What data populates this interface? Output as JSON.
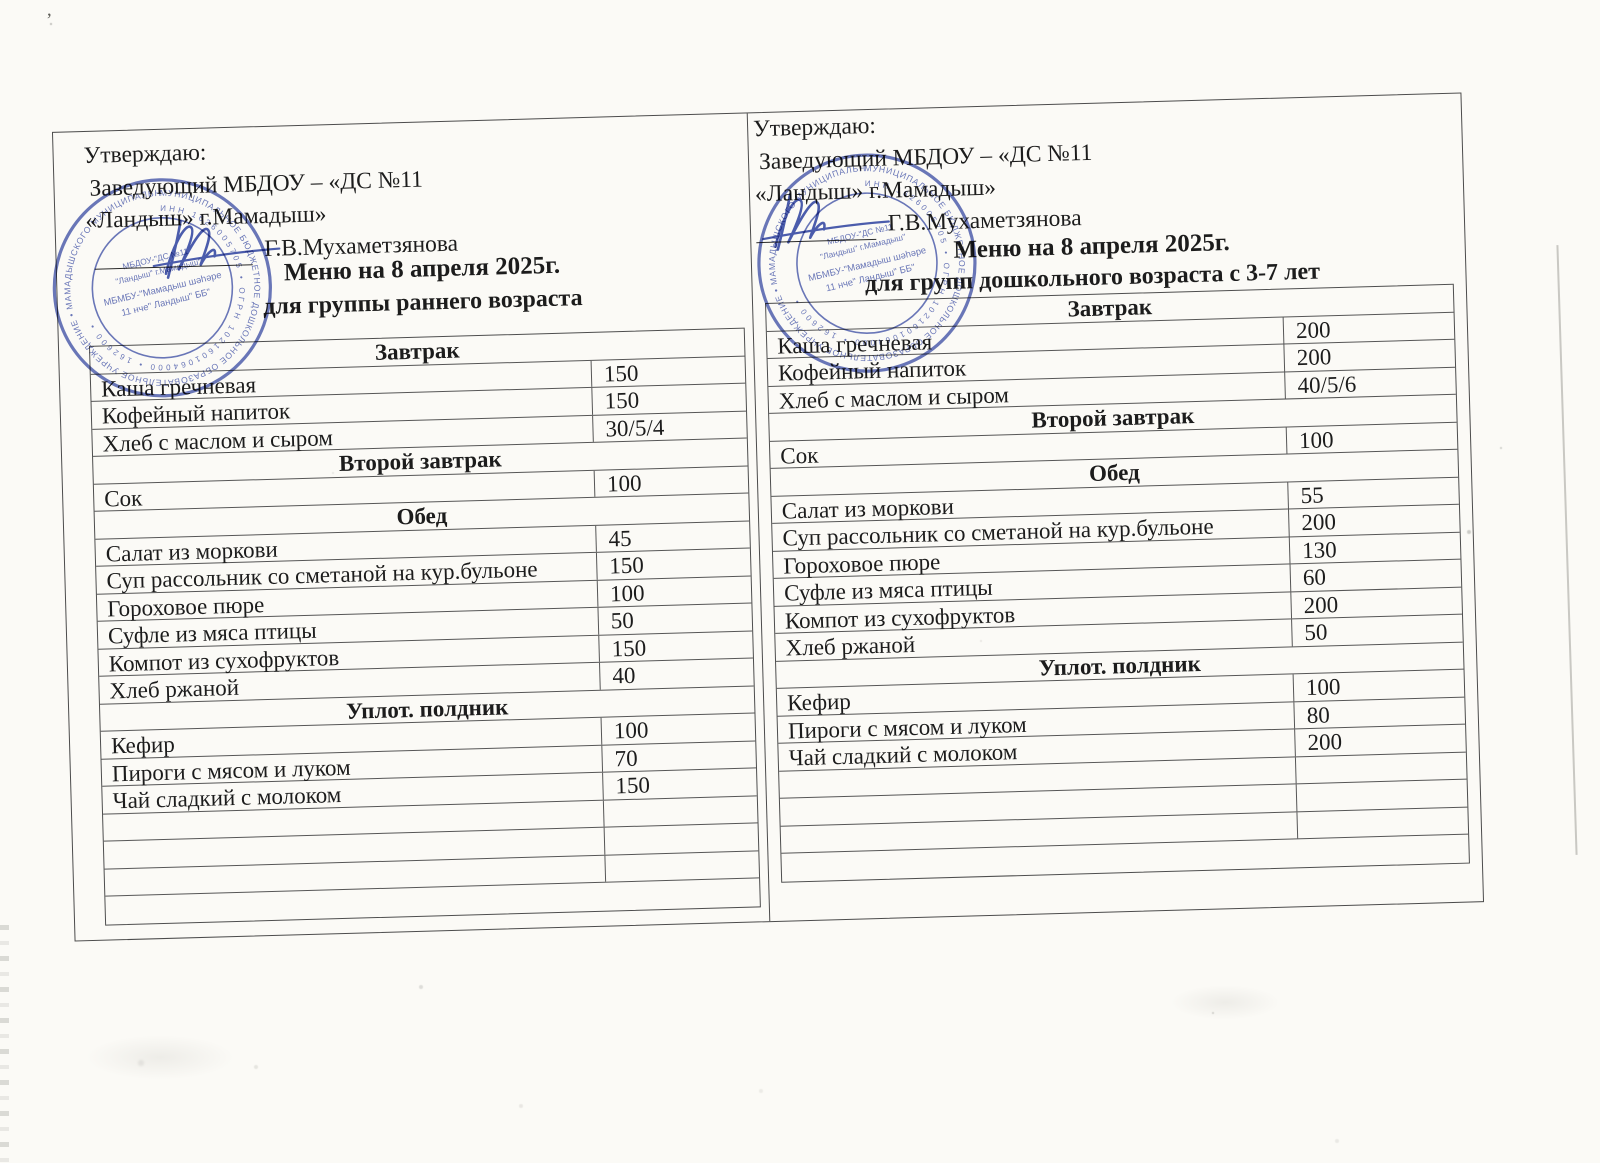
{
  "colors": {
    "paper": "#fbfaf6",
    "ink": "#1c1c1c",
    "table_line": "#565656",
    "stamp_blue": "#5463ae",
    "signature_blue": "#3c4fa5"
  },
  "stray_mark": "’",
  "left_menu": {
    "approval": {
      "line1": "Утверждаю:",
      "line2": "Заведующий МБДОУ – «ДС №11",
      "line3": "«Ландыш» г.Мамадыш»",
      "signee": "Г.В.Мухаметзянова"
    },
    "title": "Меню на 8 апреля 2025г.",
    "subtitle": "для группы раннего возраста",
    "sections": [
      {
        "header": "Завтрак",
        "items": [
          {
            "dish": "Каша гречневая",
            "amount": "150"
          },
          {
            "dish": "Кофейный напиток",
            "amount": "150"
          },
          {
            "dish": "Хлеб с маслом и сыром",
            "amount": "30/5/4"
          }
        ]
      },
      {
        "header": "Второй завтрак",
        "items": [
          {
            "dish": "Сок",
            "amount": "100"
          }
        ]
      },
      {
        "header": "Обед",
        "items": [
          {
            "dish": "Салат из моркови",
            "amount": "45"
          },
          {
            "dish": "Суп рассольник со сметаной на кур.бульоне",
            "amount": "150"
          },
          {
            "dish": "Гороховое пюре",
            "amount": "100"
          },
          {
            "dish": "Суфле из мяса птицы",
            "amount": "50"
          },
          {
            "dish": "Компот из сухофруктов",
            "amount": "150"
          },
          {
            "dish": "Хлеб ржаной",
            "amount": "40"
          }
        ]
      },
      {
        "header": "Уплот. полдник",
        "items": [
          {
            "dish": "Кефир",
            "amount": "100"
          },
          {
            "dish": "Пироги с мясом и луком",
            "amount": "70"
          },
          {
            "dish": "Чай сладкий с молоком",
            "amount": "150"
          }
        ]
      }
    ],
    "empty_rows": 4
  },
  "right_menu": {
    "approval": {
      "line1": "Утверждаю:",
      "line2": "Заведующий МБДОУ – «ДС №11",
      "line3": "«Ландыш» г.Мамадыш»",
      "signee": "Г.В.Мухаметзянова"
    },
    "title": "Меню на 8 апреля 2025г.",
    "subtitle": "для групп дошкольного возраста с 3-7 лет",
    "sections": [
      {
        "header": "Завтрак",
        "items": [
          {
            "dish": "Каша гречневая",
            "amount": "200"
          },
          {
            "dish": "Кофейный напиток",
            "amount": "200"
          },
          {
            "dish": "Хлеб с маслом и сыром",
            "amount": "40/5/6"
          }
        ]
      },
      {
        "header": "Второй завтрак",
        "items": [
          {
            "dish": "Сок",
            "amount": "100"
          }
        ]
      },
      {
        "header": "Обед",
        "items": [
          {
            "dish": "Салат из моркови",
            "amount": "55"
          },
          {
            "dish": "Суп рассольник со сметаной на кур.бульоне",
            "amount": "200"
          },
          {
            "dish": "Гороховое пюре",
            "amount": "130"
          },
          {
            "dish": "Суфле из мяса птицы",
            "amount": "60"
          },
          {
            "dish": "Компот из сухофруктов",
            "amount": "200"
          },
          {
            "dish": "Хлеб ржаной",
            "amount": "50"
          }
        ]
      },
      {
        "header": "Уплот. полдник",
        "items": [
          {
            "dish": "Кефир",
            "amount": "100"
          },
          {
            "dish": "Пироги с мясом и луком",
            "amount": "80"
          },
          {
            "dish": "Чай сладкий с молоком",
            "amount": "200"
          }
        ]
      }
    ],
    "empty_rows": 4
  },
  "stamp": {
    "ring_text": "МУНИЦИПАЛЬНОЕ БЮДЖЕТНОЕ ДОШКОЛЬНОЕ ОБРАЗОВАТЕЛЬНОЕ УЧРЕЖДЕНИЕ • МАМАДЫШСКОГО МУНИЦИПАЛЬНОГО РАЙОНА РЕСПУБЛИКИ ТАТАРСТАН •",
    "ring_numbers": "ИНН 1626005705 • ОГРН 1021601064000 • 162600 •",
    "center_lines": [
      "МБДОУ-\"ДС №11",
      "\"Ландыш\" г.Мамадыш\"",
      "МБМБУ-\"Мамадыш шәһәре",
      "11 нче\" Ландыш\" ББ\""
    ]
  }
}
